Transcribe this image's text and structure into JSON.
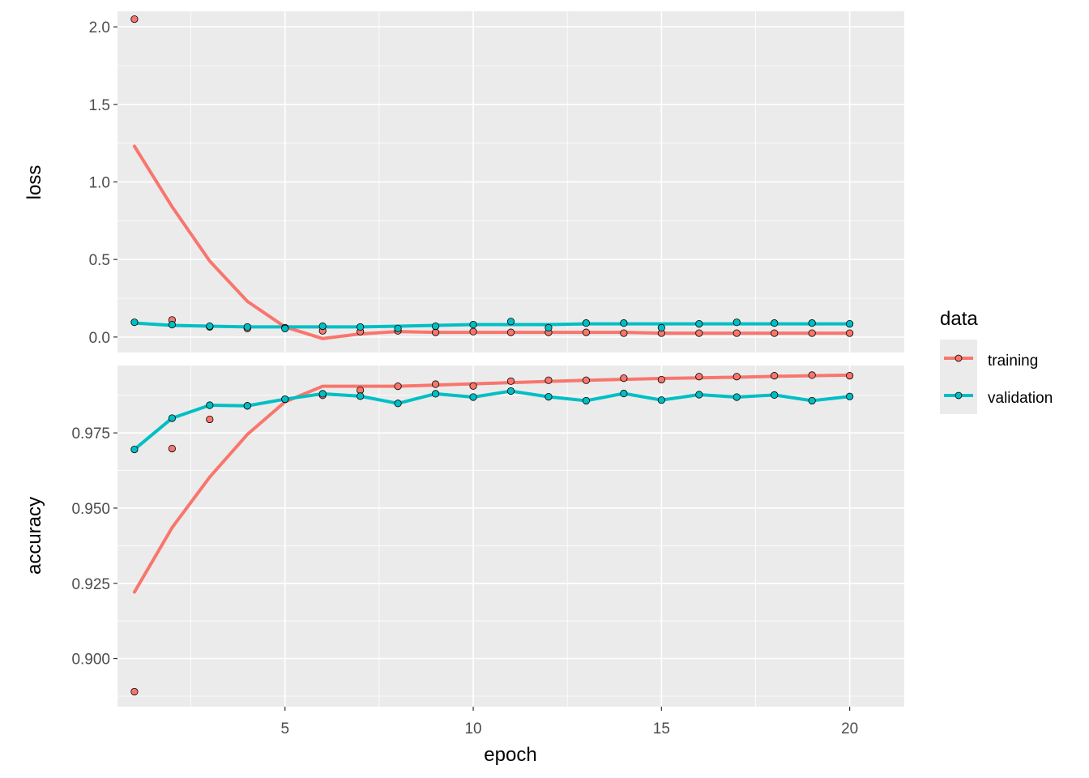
{
  "chart_data": {
    "type": "scatter",
    "x_label": "epoch",
    "x_ticks": [
      5,
      10,
      15,
      20
    ],
    "x_range": [
      0.55,
      21.45
    ],
    "epochs": [
      1,
      2,
      3,
      4,
      5,
      6,
      7,
      8,
      9,
      10,
      11,
      12,
      13,
      14,
      15,
      16,
      17,
      18,
      19,
      20
    ],
    "legend": {
      "title": "data",
      "placement": "right",
      "entries": [
        {
          "key": "training",
          "label": "training",
          "color": "#F8766D"
        },
        {
          "key": "validation",
          "label": "validation",
          "color": "#00BFC4"
        }
      ]
    },
    "panels": [
      {
        "name": "loss",
        "ylabel": "loss",
        "y_range": [
          -0.1,
          2.1
        ],
        "y_ticks": [
          0.0,
          0.5,
          1.0,
          1.5,
          2.0
        ],
        "y_tick_labels": [
          "0.0",
          "0.5",
          "1.0",
          "1.5",
          "2.0"
        ],
        "series": [
          {
            "key": "training",
            "points": [
              2.05,
              0.11,
              0.065,
              0.055,
              0.06,
              0.04,
              0.035,
              0.04,
              0.03,
              0.035,
              0.03,
              0.03,
              0.03,
              0.025,
              0.025,
              0.025,
              0.025,
              0.025,
              0.025,
              0.025
            ],
            "smooth": [
              1.23,
              0.84,
              0.49,
              0.23,
              0.065,
              -0.01,
              0.02,
              0.035,
              0.03,
              0.03,
              0.03,
              0.03,
              0.03,
              0.03,
              0.025,
              0.025,
              0.025,
              0.025,
              0.025,
              0.025
            ]
          },
          {
            "key": "validation",
            "points": [
              0.095,
              0.08,
              0.07,
              0.065,
              0.055,
              0.07,
              0.065,
              0.055,
              0.07,
              0.08,
              0.1,
              0.06,
              0.09,
              0.09,
              0.06,
              0.085,
              0.095,
              0.09,
              0.09,
              0.085
            ],
            "smooth": [
              0.09,
              0.075,
              0.07,
              0.065,
              0.065,
              0.065,
              0.065,
              0.07,
              0.075,
              0.08,
              0.08,
              0.08,
              0.085,
              0.085,
              0.085,
              0.085,
              0.085,
              0.085,
              0.085,
              0.085
            ]
          }
        ]
      },
      {
        "name": "accuracy",
        "ylabel": "accuracy",
        "y_range": [
          0.884,
          0.9974
        ],
        "y_ticks": [
          0.9,
          0.925,
          0.95,
          0.975
        ],
        "y_tick_labels": [
          "0.900",
          "0.925",
          "0.950",
          "0.975"
        ],
        "series": [
          {
            "key": "training",
            "points": [
              0.889,
              0.9698,
              0.9795,
              0.984,
              0.9862,
              0.9875,
              0.9892,
              0.9905,
              0.9912,
              0.9906,
              0.9922,
              0.9925,
              0.9925,
              0.9932,
              0.9927,
              0.9937,
              0.9937,
              0.994,
              0.9942,
              0.994
            ],
            "smooth": [
              0.9221,
              0.9435,
              0.9603,
              0.9745,
              0.9853,
              0.9905,
              0.9905,
              0.9905,
              0.9909,
              0.9913,
              0.9917,
              0.9921,
              0.9925,
              0.9928,
              0.9931,
              0.9933,
              0.9935,
              0.9938,
              0.994,
              0.9942
            ]
          },
          {
            "key": "validation",
            "points": [
              0.9695,
              0.9799,
              0.9842,
              0.984,
              0.9862,
              0.988,
              0.9872,
              0.9848,
              0.988,
              0.9869,
              0.9889,
              0.987,
              0.9857,
              0.9881,
              0.9859,
              0.9877,
              0.9869,
              0.9876,
              0.9857,
              0.9871
            ]
          }
        ]
      }
    ]
  }
}
